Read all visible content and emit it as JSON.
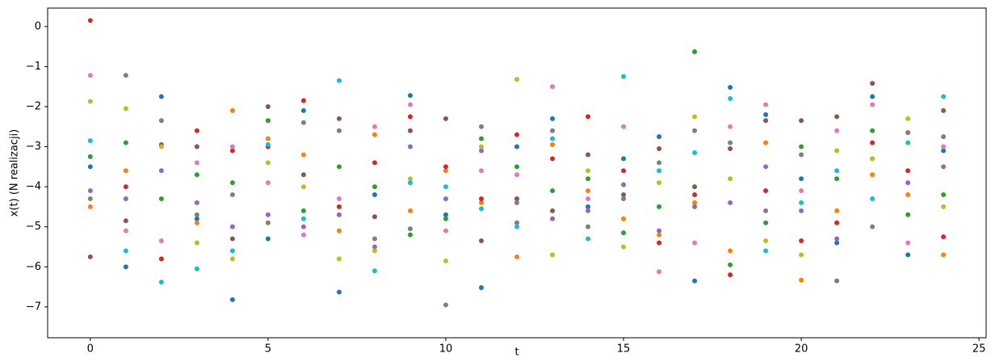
{
  "chart_data": {
    "type": "scatter",
    "xlabel": "t",
    "ylabel": "x(t) (N realizacji)",
    "x": [
      0,
      1,
      2,
      3,
      4,
      5,
      6,
      7,
      8,
      9,
      10,
      11,
      12,
      13,
      14,
      15,
      16,
      17,
      18,
      19,
      20,
      21,
      22,
      23,
      24
    ],
    "xlim": [
      -1.2,
      25.2
    ],
    "xticks": [
      0,
      5,
      10,
      15,
      20,
      25
    ],
    "ylim": [
      -7.77,
      0.46
    ],
    "yticks": [
      {
        "value": -7,
        "label": "−7"
      },
      {
        "value": -6,
        "label": "−6"
      },
      {
        "value": -5,
        "label": "−5"
      },
      {
        "value": -4,
        "label": "−4"
      },
      {
        "value": -3,
        "label": "−3"
      },
      {
        "value": -2,
        "label": "−2"
      },
      {
        "value": -1,
        "label": "−1"
      },
      0
    ],
    "series": [
      {
        "color": "#1f77b4",
        "values": [
          -3.5,
          -6.0,
          -1.75,
          -4.8,
          -6.82,
          -5.3,
          -2.1,
          -6.63,
          -4.2,
          -1.72,
          -4.7,
          -6.52,
          -3.0,
          -2.3,
          -4.5,
          -3.3,
          -2.75,
          -6.35,
          -1.52,
          -2.2,
          -3.8,
          -5.4,
          -1.75,
          -5.7,
          -3.1
        ]
      },
      {
        "color": "#ff7f0e",
        "values": [
          -4.5,
          -3.6,
          -5.8,
          -4.9,
          -2.1,
          -2.8,
          -3.2,
          -5.1,
          -2.7,
          -4.6,
          -3.6,
          -4.4,
          -5.75,
          -2.95,
          -4.1,
          -4.8,
          -5.2,
          -4.4,
          -5.6,
          -2.9,
          -6.33,
          -4.6,
          -3.7,
          -4.2,
          -5.7
        ]
      },
      {
        "color": "#2ca02c",
        "values": [
          -3.25,
          -2.9,
          -4.3,
          -3.7,
          -3.9,
          -2.35,
          -4.6,
          -3.5,
          -4.0,
          -5.2,
          -4.8,
          -2.8,
          -3.5,
          -4.1,
          -3.8,
          -5.15,
          -4.5,
          -0.63,
          -5.95,
          -4.9,
          -3.0,
          -3.8,
          -2.6,
          -4.7,
          -4.2
        ]
      },
      {
        "color": "#d62728",
        "values": [
          0.15,
          -4.0,
          -5.8,
          -2.6,
          -3.1,
          -3.0,
          -1.85,
          -4.5,
          -3.4,
          -2.25,
          -3.5,
          -4.3,
          -2.7,
          -3.3,
          -2.25,
          -3.6,
          -5.4,
          -4.2,
          -6.2,
          -4.1,
          -5.35,
          -4.9,
          -2.9,
          -3.6,
          -5.25
        ]
      },
      {
        "color": "#9467bd",
        "values": [
          -4.1,
          -4.3,
          -3.6,
          -4.4,
          -5.0,
          -4.7,
          -5.0,
          -4.7,
          -5.5,
          -3.0,
          -4.3,
          -3.1,
          -4.9,
          -4.8,
          -4.6,
          -3.95,
          -5.1,
          -4.5,
          -4.4,
          -3.5,
          -4.6,
          -5.3,
          -3.3,
          -3.9,
          -3.5
        ]
      },
      {
        "color": "#8c564b",
        "values": [
          -5.75,
          -4.85,
          -2.95,
          -3.0,
          -5.3,
          -2.0,
          -3.7,
          -2.3,
          -4.75,
          -2.6,
          -2.3,
          -5.35,
          -4.3,
          -4.6,
          -3.2,
          -4.2,
          -3.05,
          -4.0,
          -3.05,
          -2.35,
          -2.35,
          -2.25,
          -1.42,
          -2.65,
          -2.1
        ]
      },
      {
        "color": "#e377c2",
        "values": [
          -1.22,
          -5.1,
          -5.35,
          -3.4,
          -3.0,
          -3.9,
          -5.2,
          -4.3,
          -2.5,
          -1.95,
          -5.1,
          -3.6,
          -3.7,
          -1.5,
          -4.3,
          -2.5,
          -6.12,
          -5.4,
          -2.5,
          -1.95,
          -4.1,
          -2.6,
          -1.95,
          -5.4,
          -3.0
        ]
      },
      {
        "color": "#7f7f7f",
        "values": [
          -4.3,
          -1.22,
          -2.35,
          -4.7,
          -4.2,
          -4.9,
          -2.4,
          -2.6,
          -5.3,
          -5.05,
          -6.95,
          -2.5,
          -4.4,
          -2.6,
          -5.0,
          -4.3,
          -3.4,
          -2.6,
          -2.9,
          -4.6,
          -3.2,
          -6.35,
          -5.0,
          -2.65,
          -2.75
        ]
      },
      {
        "color": "#bcbd22",
        "values": [
          -1.87,
          -2.05,
          -3.0,
          -5.4,
          -5.8,
          -3.4,
          -4.0,
          -5.8,
          -5.6,
          -3.8,
          -5.85,
          -3.0,
          -1.32,
          -5.7,
          -3.6,
          -5.5,
          -3.9,
          -2.25,
          -3.8,
          -5.35,
          -5.7,
          -3.1,
          -3.3,
          -2.3,
          -4.5
        ]
      },
      {
        "color": "#17becf",
        "values": [
          -2.85,
          -5.6,
          -6.38,
          -6.05,
          -5.6,
          -2.95,
          -4.8,
          -1.35,
          -6.1,
          -3.9,
          -4.0,
          -4.55,
          -5.0,
          -2.8,
          -5.3,
          -1.25,
          -3.6,
          -3.15,
          -1.8,
          -5.6,
          -4.4,
          -3.6,
          -4.3,
          -2.9,
          -1.75
        ]
      }
    ]
  }
}
